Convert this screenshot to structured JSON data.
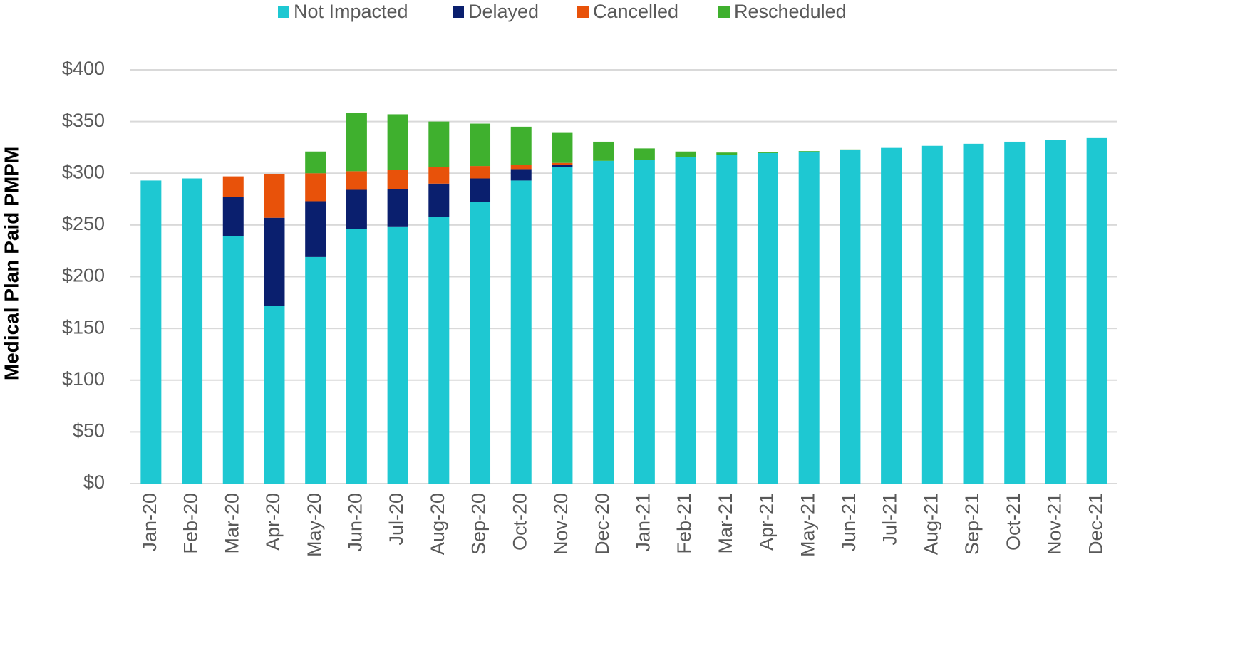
{
  "chart_data": {
    "type": "stacked_bar",
    "y_label": "Medical Plan Paid PMPM",
    "categories": [
      "Jan-20",
      "Feb-20",
      "Mar-20",
      "Apr-20",
      "May-20",
      "Jun-20",
      "Jul-20",
      "Aug-20",
      "Sep-20",
      "Oct-20",
      "Nov-20",
      "Dec-20",
      "Jan-21",
      "Feb-21",
      "Mar-21",
      "Apr-21",
      "May-21",
      "Jun-21",
      "Jul-21",
      "Aug-21",
      "Sep-21",
      "Oct-21",
      "Nov-21",
      "Dec-21"
    ],
    "series": [
      {
        "name": "Not Impacted",
        "color": "#1ec8d2",
        "values": [
          293,
          295,
          239,
          172,
          219,
          246,
          248,
          258,
          272,
          293,
          306,
          312,
          313,
          316,
          318,
          319.5,
          321,
          322.5,
          324.5,
          326.5,
          328.5,
          330.5,
          332,
          334
        ]
      },
      {
        "name": "Delayed",
        "color": "#0a1f6e",
        "values": [
          0,
          0,
          38,
          85,
          54,
          38,
          37,
          32,
          23,
          11,
          2,
          0,
          0,
          0,
          0,
          0,
          0,
          0,
          0,
          0,
          0,
          0,
          0,
          0
        ]
      },
      {
        "name": "Cancelled",
        "color": "#e8520a",
        "values": [
          0,
          0,
          20,
          42,
          27,
          18,
          18,
          16,
          12,
          4,
          2,
          0,
          0,
          0,
          0,
          0,
          0,
          0,
          0,
          0,
          0,
          0,
          0,
          0
        ]
      },
      {
        "name": "Rescheduled",
        "color": "#3fb02e",
        "values": [
          0,
          0,
          0,
          0,
          21,
          56,
          54,
          44,
          41,
          37,
          29,
          18.5,
          11,
          5,
          2,
          1,
          0.5,
          0.5,
          0,
          0,
          0,
          0,
          0,
          0
        ]
      }
    ],
    "ylim": [
      0,
      400
    ],
    "yticks": [
      {
        "value": 0,
        "label": "$0"
      },
      {
        "value": 50,
        "label": "$50"
      },
      {
        "value": 100,
        "label": "$100"
      },
      {
        "value": 150,
        "label": "$150"
      },
      {
        "value": 200,
        "label": "$200"
      },
      {
        "value": 250,
        "label": "$250"
      },
      {
        "value": 300,
        "label": "$300"
      },
      {
        "value": 350,
        "label": "$350"
      },
      {
        "value": 400,
        "label": "$400"
      }
    ],
    "grid": true,
    "legend": "top"
  }
}
